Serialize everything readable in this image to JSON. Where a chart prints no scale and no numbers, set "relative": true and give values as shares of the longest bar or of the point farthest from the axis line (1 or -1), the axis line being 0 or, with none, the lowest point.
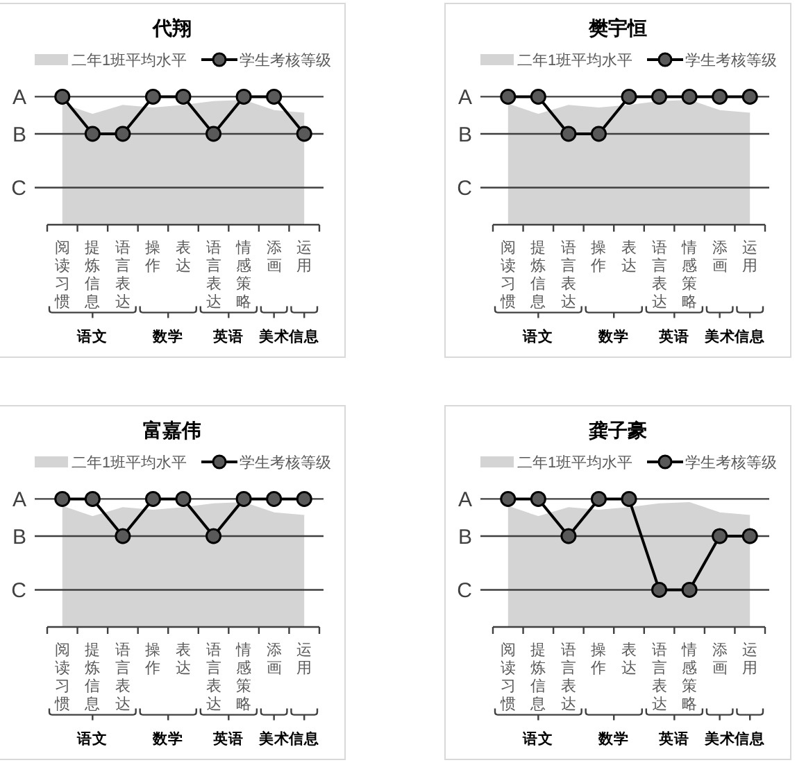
{
  "chart_data": [
    {
      "type": "line",
      "title": "代翔",
      "categories": [
        "阅读习惯",
        "提炼信息",
        "语言表达",
        "操作",
        "表达",
        "语言表达",
        "情感策略",
        "添画",
        "运用"
      ],
      "relative": true,
      "series": [
        {
          "name": "二年1班平均水平",
          "type": "area",
          "color": "#d4d4d4",
          "marker": "none",
          "values": [
            0.94,
            0.86,
            0.93,
            0.91,
            0.93,
            0.96,
            0.97,
            0.89,
            0.87
          ]
        },
        {
          "name": "学生考核等级",
          "type": "line",
          "color": "#000000",
          "values": [
            1,
            0.71,
            0.71,
            1,
            1,
            0.71,
            1,
            1,
            0.71
          ]
        }
      ],
      "ref_lines": [
        {
          "axis": "y",
          "value": 0.29,
          "label": "C"
        },
        {
          "axis": "y",
          "value": 0.71,
          "label": "B"
        },
        {
          "axis": "y",
          "value": 1,
          "label": "A"
        }
      ],
      "legend": "top",
      "marker": "circle",
      "annotations": [
        "语文",
        "数学",
        "英语",
        "美术",
        "信息"
      ]
    },
    {
      "type": "line",
      "title": "樊宇恒",
      "categories": [
        "阅读习惯",
        "提炼信息",
        "语言表达",
        "操作",
        "表达",
        "语言表达",
        "情感策略",
        "添画",
        "运用"
      ],
      "relative": true,
      "series": [
        {
          "name": "二年1班平均水平",
          "type": "area",
          "color": "#d4d4d4",
          "marker": "none",
          "values": [
            0.94,
            0.86,
            0.93,
            0.91,
            0.93,
            0.96,
            0.97,
            0.89,
            0.87
          ]
        },
        {
          "name": "学生考核等级",
          "type": "line",
          "color": "#000000",
          "values": [
            1,
            1,
            0.71,
            0.71,
            1,
            1,
            1,
            1,
            1
          ]
        }
      ],
      "ref_lines": [
        {
          "axis": "y",
          "value": 0.29,
          "label": "C"
        },
        {
          "axis": "y",
          "value": 0.71,
          "label": "B"
        },
        {
          "axis": "y",
          "value": 1,
          "label": "A"
        }
      ],
      "legend": "top",
      "marker": "circle",
      "annotations": [
        "语文",
        "数学",
        "英语",
        "美术",
        "信息"
      ]
    },
    {
      "type": "line",
      "title": "富嘉伟",
      "categories": [
        "阅读习惯",
        "提炼信息",
        "语言表达",
        "操作",
        "表达",
        "语言表达",
        "情感策略",
        "添画",
        "运用"
      ],
      "relative": true,
      "series": [
        {
          "name": "二年1班平均水平",
          "type": "area",
          "color": "#d4d4d4",
          "marker": "none",
          "values": [
            0.94,
            0.86,
            0.93,
            0.91,
            0.93,
            0.96,
            0.97,
            0.89,
            0.87
          ]
        },
        {
          "name": "学生考核等级",
          "type": "line",
          "color": "#000000",
          "values": [
            1,
            1,
            0.71,
            1,
            1,
            0.71,
            1,
            1,
            1
          ]
        }
      ],
      "ref_lines": [
        {
          "axis": "y",
          "value": 0.29,
          "label": "C"
        },
        {
          "axis": "y",
          "value": 0.71,
          "label": "B"
        },
        {
          "axis": "y",
          "value": 1,
          "label": "A"
        }
      ],
      "legend": "top",
      "marker": "circle",
      "annotations": [
        "语文",
        "数学",
        "英语",
        "美术",
        "信息"
      ]
    },
    {
      "type": "line",
      "title": "龚子豪",
      "categories": [
        "阅读习惯",
        "提炼信息",
        "语言表达",
        "操作",
        "表达",
        "语言表达",
        "情感策略",
        "添画",
        "运用"
      ],
      "relative": true,
      "series": [
        {
          "name": "二年1班平均水平",
          "type": "area",
          "color": "#d4d4d4",
          "marker": "none",
          "values": [
            0.94,
            0.86,
            0.93,
            0.91,
            0.93,
            0.96,
            0.97,
            0.89,
            0.87
          ]
        },
        {
          "name": "学生考核等级",
          "type": "line",
          "color": "#000000",
          "values": [
            1,
            1,
            0.71,
            1,
            1,
            0.29,
            0.29,
            0.71,
            0.71
          ]
        }
      ],
      "ref_lines": [
        {
          "axis": "y",
          "value": 0.29,
          "label": "C"
        },
        {
          "axis": "y",
          "value": 0.71,
          "label": "B"
        },
        {
          "axis": "y",
          "value": 1,
          "label": "A"
        }
      ],
      "legend": "top",
      "marker": "circle",
      "annotations": [
        "语文",
        "数学",
        "英语",
        "美术",
        "信息"
      ]
    }
  ]
}
